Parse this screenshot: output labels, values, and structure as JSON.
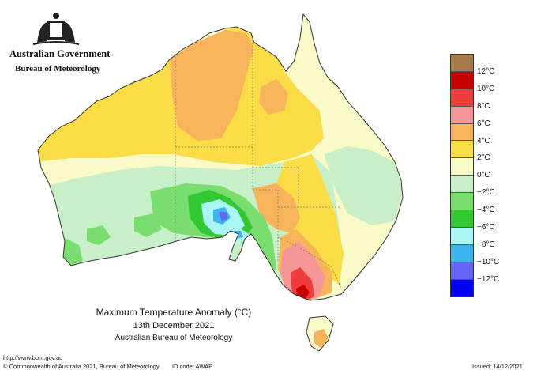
{
  "header": {
    "government": "Australian Government",
    "bureau": "Bureau of Meteorology"
  },
  "map": {
    "title": "Maximum Temperature Anomaly (°C)",
    "date": "13th December 2021",
    "agency": "Australian Bureau of Meteorology"
  },
  "legend": {
    "swatches": [
      "#a87c4a",
      "#c80000",
      "#f03c3c",
      "#f79696",
      "#f7b45a",
      "#fadc46",
      "#fafac8",
      "#c8f0c8",
      "#7ade6e",
      "#32c832",
      "#aaf5f5",
      "#3cb4f0",
      "#6464f5",
      "#0000f0"
    ],
    "labels": [
      "12°C",
      "10°C",
      "8°C",
      "6°C",
      "4°C",
      "2°C",
      "0°C",
      "−2°C",
      "−4°C",
      "−6°C",
      "−8°C",
      "−10°C",
      "−12°C"
    ]
  },
  "footer": {
    "url": "http://www.bom.gov.au",
    "copyright": "© Commonwealth of Australia 2021, Bureau of Meteorology",
    "id_code": "ID code: AWAP",
    "issued": "Issued: 14/12/2021"
  }
}
